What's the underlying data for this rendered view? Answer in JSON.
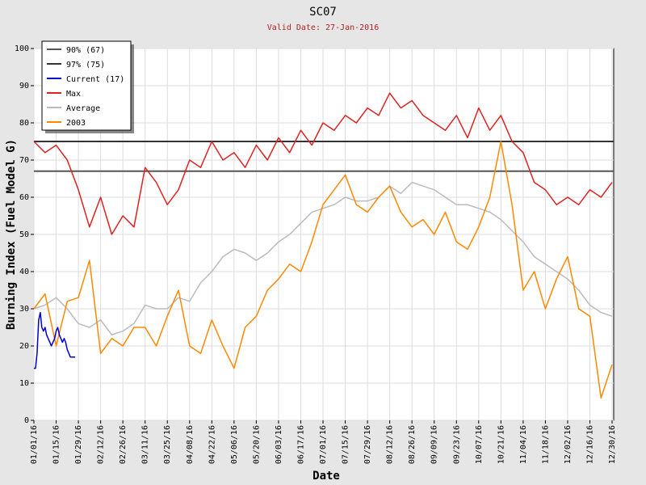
{
  "chart_data": {
    "type": "line",
    "title": "SC07",
    "subtitle": "Valid Date: 27-Jan-2016",
    "xlabel": "Date",
    "ylabel": "Burning Index (Fuel Model G)",
    "ylim": [
      0,
      100
    ],
    "y_ticks": [
      0,
      10,
      20,
      30,
      40,
      50,
      60,
      70,
      80,
      90,
      100
    ],
    "xlim": [
      "2016-01-01",
      "2016-12-31"
    ],
    "x_ticks": [
      "01/01/16",
      "01/15/16",
      "01/29/16",
      "02/12/16",
      "02/26/16",
      "03/11/16",
      "03/25/16",
      "04/08/16",
      "04/22/16",
      "05/06/16",
      "05/20/16",
      "06/03/16",
      "06/17/16",
      "07/01/16",
      "07/15/16",
      "07/29/16",
      "08/12/16",
      "08/26/16",
      "09/09/16",
      "09/23/16",
      "10/07/16",
      "10/21/16",
      "11/04/16",
      "11/18/16",
      "12/02/16",
      "12/16/16",
      "12/30/16"
    ],
    "grid": true,
    "legend_position": "top-left",
    "reference_lines": [
      {
        "name": "90% (67)",
        "value": 67,
        "color": "#555555"
      },
      {
        "name": "97% (75)",
        "value": 75,
        "color": "#333333"
      }
    ],
    "series": [
      {
        "name": "Current (17)",
        "color": "#0000cc",
        "x": [
          "2016-01-01",
          "2016-01-02",
          "2016-01-03",
          "2016-01-04",
          "2016-01-05",
          "2016-01-06",
          "2016-01-07",
          "2016-01-08",
          "2016-01-09",
          "2016-01-10",
          "2016-01-11",
          "2016-01-12",
          "2016-01-13",
          "2016-01-14",
          "2016-01-15",
          "2016-01-16",
          "2016-01-17",
          "2016-01-18",
          "2016-01-19",
          "2016-01-20",
          "2016-01-21",
          "2016-01-22",
          "2016-01-23",
          "2016-01-24",
          "2016-01-25",
          "2016-01-26",
          "2016-01-27"
        ],
        "y": [
          14,
          14,
          18,
          27,
          29,
          25,
          24,
          25,
          23,
          22,
          21,
          20,
          21,
          22,
          24,
          25,
          23,
          22,
          21,
          22,
          21,
          19,
          18,
          17,
          17,
          17,
          17
        ]
      },
      {
        "name": "Max",
        "color": "#dd2222",
        "x": [
          "2016-01-01",
          "2016-01-08",
          "2016-01-15",
          "2016-01-22",
          "2016-01-29",
          "2016-02-05",
          "2016-02-12",
          "2016-02-19",
          "2016-02-26",
          "2016-03-04",
          "2016-03-11",
          "2016-03-18",
          "2016-03-25",
          "2016-04-01",
          "2016-04-08",
          "2016-04-15",
          "2016-04-22",
          "2016-04-29",
          "2016-05-06",
          "2016-05-13",
          "2016-05-20",
          "2016-05-27",
          "2016-06-03",
          "2016-06-10",
          "2016-06-17",
          "2016-06-24",
          "2016-07-01",
          "2016-07-08",
          "2016-07-15",
          "2016-07-22",
          "2016-07-29",
          "2016-08-05",
          "2016-08-12",
          "2016-08-19",
          "2016-08-26",
          "2016-09-02",
          "2016-09-09",
          "2016-09-16",
          "2016-09-23",
          "2016-09-30",
          "2016-10-07",
          "2016-10-14",
          "2016-10-21",
          "2016-10-28",
          "2016-11-04",
          "2016-11-11",
          "2016-11-18",
          "2016-11-25",
          "2016-12-02",
          "2016-12-09",
          "2016-12-16",
          "2016-12-23",
          "2016-12-30"
        ],
        "y": [
          75,
          72,
          74,
          70,
          62,
          52,
          60,
          50,
          55,
          52,
          68,
          64,
          58,
          62,
          70,
          68,
          75,
          70,
          72,
          68,
          74,
          70,
          76,
          72,
          78,
          74,
          80,
          78,
          82,
          80,
          84,
          82,
          88,
          84,
          86,
          82,
          80,
          78,
          82,
          76,
          84,
          78,
          82,
          75,
          72,
          64,
          62,
          58,
          60,
          58,
          62,
          60,
          64
        ]
      },
      {
        "name": "Average",
        "color": "#bbbbbb",
        "x": [
          "2016-01-01",
          "2016-01-08",
          "2016-01-15",
          "2016-01-22",
          "2016-01-29",
          "2016-02-05",
          "2016-02-12",
          "2016-02-19",
          "2016-02-26",
          "2016-03-04",
          "2016-03-11",
          "2016-03-18",
          "2016-03-25",
          "2016-04-01",
          "2016-04-08",
          "2016-04-15",
          "2016-04-22",
          "2016-04-29",
          "2016-05-06",
          "2016-05-13",
          "2016-05-20",
          "2016-05-27",
          "2016-06-03",
          "2016-06-10",
          "2016-06-17",
          "2016-06-24",
          "2016-07-01",
          "2016-07-08",
          "2016-07-15",
          "2016-07-22",
          "2016-07-29",
          "2016-08-05",
          "2016-08-12",
          "2016-08-19",
          "2016-08-26",
          "2016-09-02",
          "2016-09-09",
          "2016-09-16",
          "2016-09-23",
          "2016-09-30",
          "2016-10-07",
          "2016-10-14",
          "2016-10-21",
          "2016-10-28",
          "2016-11-04",
          "2016-11-11",
          "2016-11-18",
          "2016-11-25",
          "2016-12-02",
          "2016-12-09",
          "2016-12-16",
          "2016-12-23",
          "2016-12-30"
        ],
        "y": [
          30,
          31,
          33,
          30,
          26,
          25,
          27,
          23,
          24,
          26,
          31,
          30,
          30,
          33,
          32,
          37,
          40,
          44,
          46,
          45,
          43,
          45,
          48,
          50,
          53,
          56,
          57,
          58,
          60,
          59,
          59,
          60,
          63,
          61,
          64,
          63,
          62,
          60,
          58,
          58,
          57,
          56,
          54,
          51,
          48,
          44,
          42,
          40,
          38,
          35,
          31,
          29,
          28
        ]
      },
      {
        "name": "2003",
        "color": "#ff8800",
        "x": [
          "2016-01-01",
          "2016-01-08",
          "2016-01-15",
          "2016-01-22",
          "2016-01-29",
          "2016-02-05",
          "2016-02-12",
          "2016-02-19",
          "2016-02-26",
          "2016-03-04",
          "2016-03-11",
          "2016-03-18",
          "2016-03-25",
          "2016-04-01",
          "2016-04-08",
          "2016-04-15",
          "2016-04-22",
          "2016-04-29",
          "2016-05-06",
          "2016-05-13",
          "2016-05-20",
          "2016-05-27",
          "2016-06-03",
          "2016-06-10",
          "2016-06-17",
          "2016-06-24",
          "2016-07-01",
          "2016-07-08",
          "2016-07-15",
          "2016-07-22",
          "2016-07-29",
          "2016-08-05",
          "2016-08-12",
          "2016-08-19",
          "2016-08-26",
          "2016-09-02",
          "2016-09-09",
          "2016-09-16",
          "2016-09-23",
          "2016-09-30",
          "2016-10-07",
          "2016-10-14",
          "2016-10-21",
          "2016-10-28",
          "2016-11-04",
          "2016-11-11",
          "2016-11-18",
          "2016-11-25",
          "2016-12-02",
          "2016-12-09",
          "2016-12-16",
          "2016-12-23",
          "2016-12-30"
        ],
        "y": [
          30,
          34,
          20,
          32,
          33,
          43,
          18,
          22,
          20,
          25,
          25,
          20,
          28,
          35,
          20,
          18,
          27,
          20,
          14,
          25,
          28,
          35,
          38,
          42,
          40,
          48,
          58,
          62,
          66,
          58,
          56,
          60,
          63,
          56,
          52,
          54,
          50,
          56,
          48,
          46,
          52,
          60,
          75,
          58,
          35,
          40,
          30,
          38,
          44,
          30,
          28,
          6,
          15
        ]
      }
    ]
  },
  "legend": {
    "items": [
      {
        "label": "90% (67)",
        "color": "#555555"
      },
      {
        "label": "97% (75)",
        "color": "#333333"
      },
      {
        "label": "Current (17)",
        "color": "#0000cc"
      },
      {
        "label": "Max",
        "color": "#dd2222"
      },
      {
        "label": "Average",
        "color": "#bbbbbb"
      },
      {
        "label": "2003",
        "color": "#ff8800"
      }
    ]
  }
}
